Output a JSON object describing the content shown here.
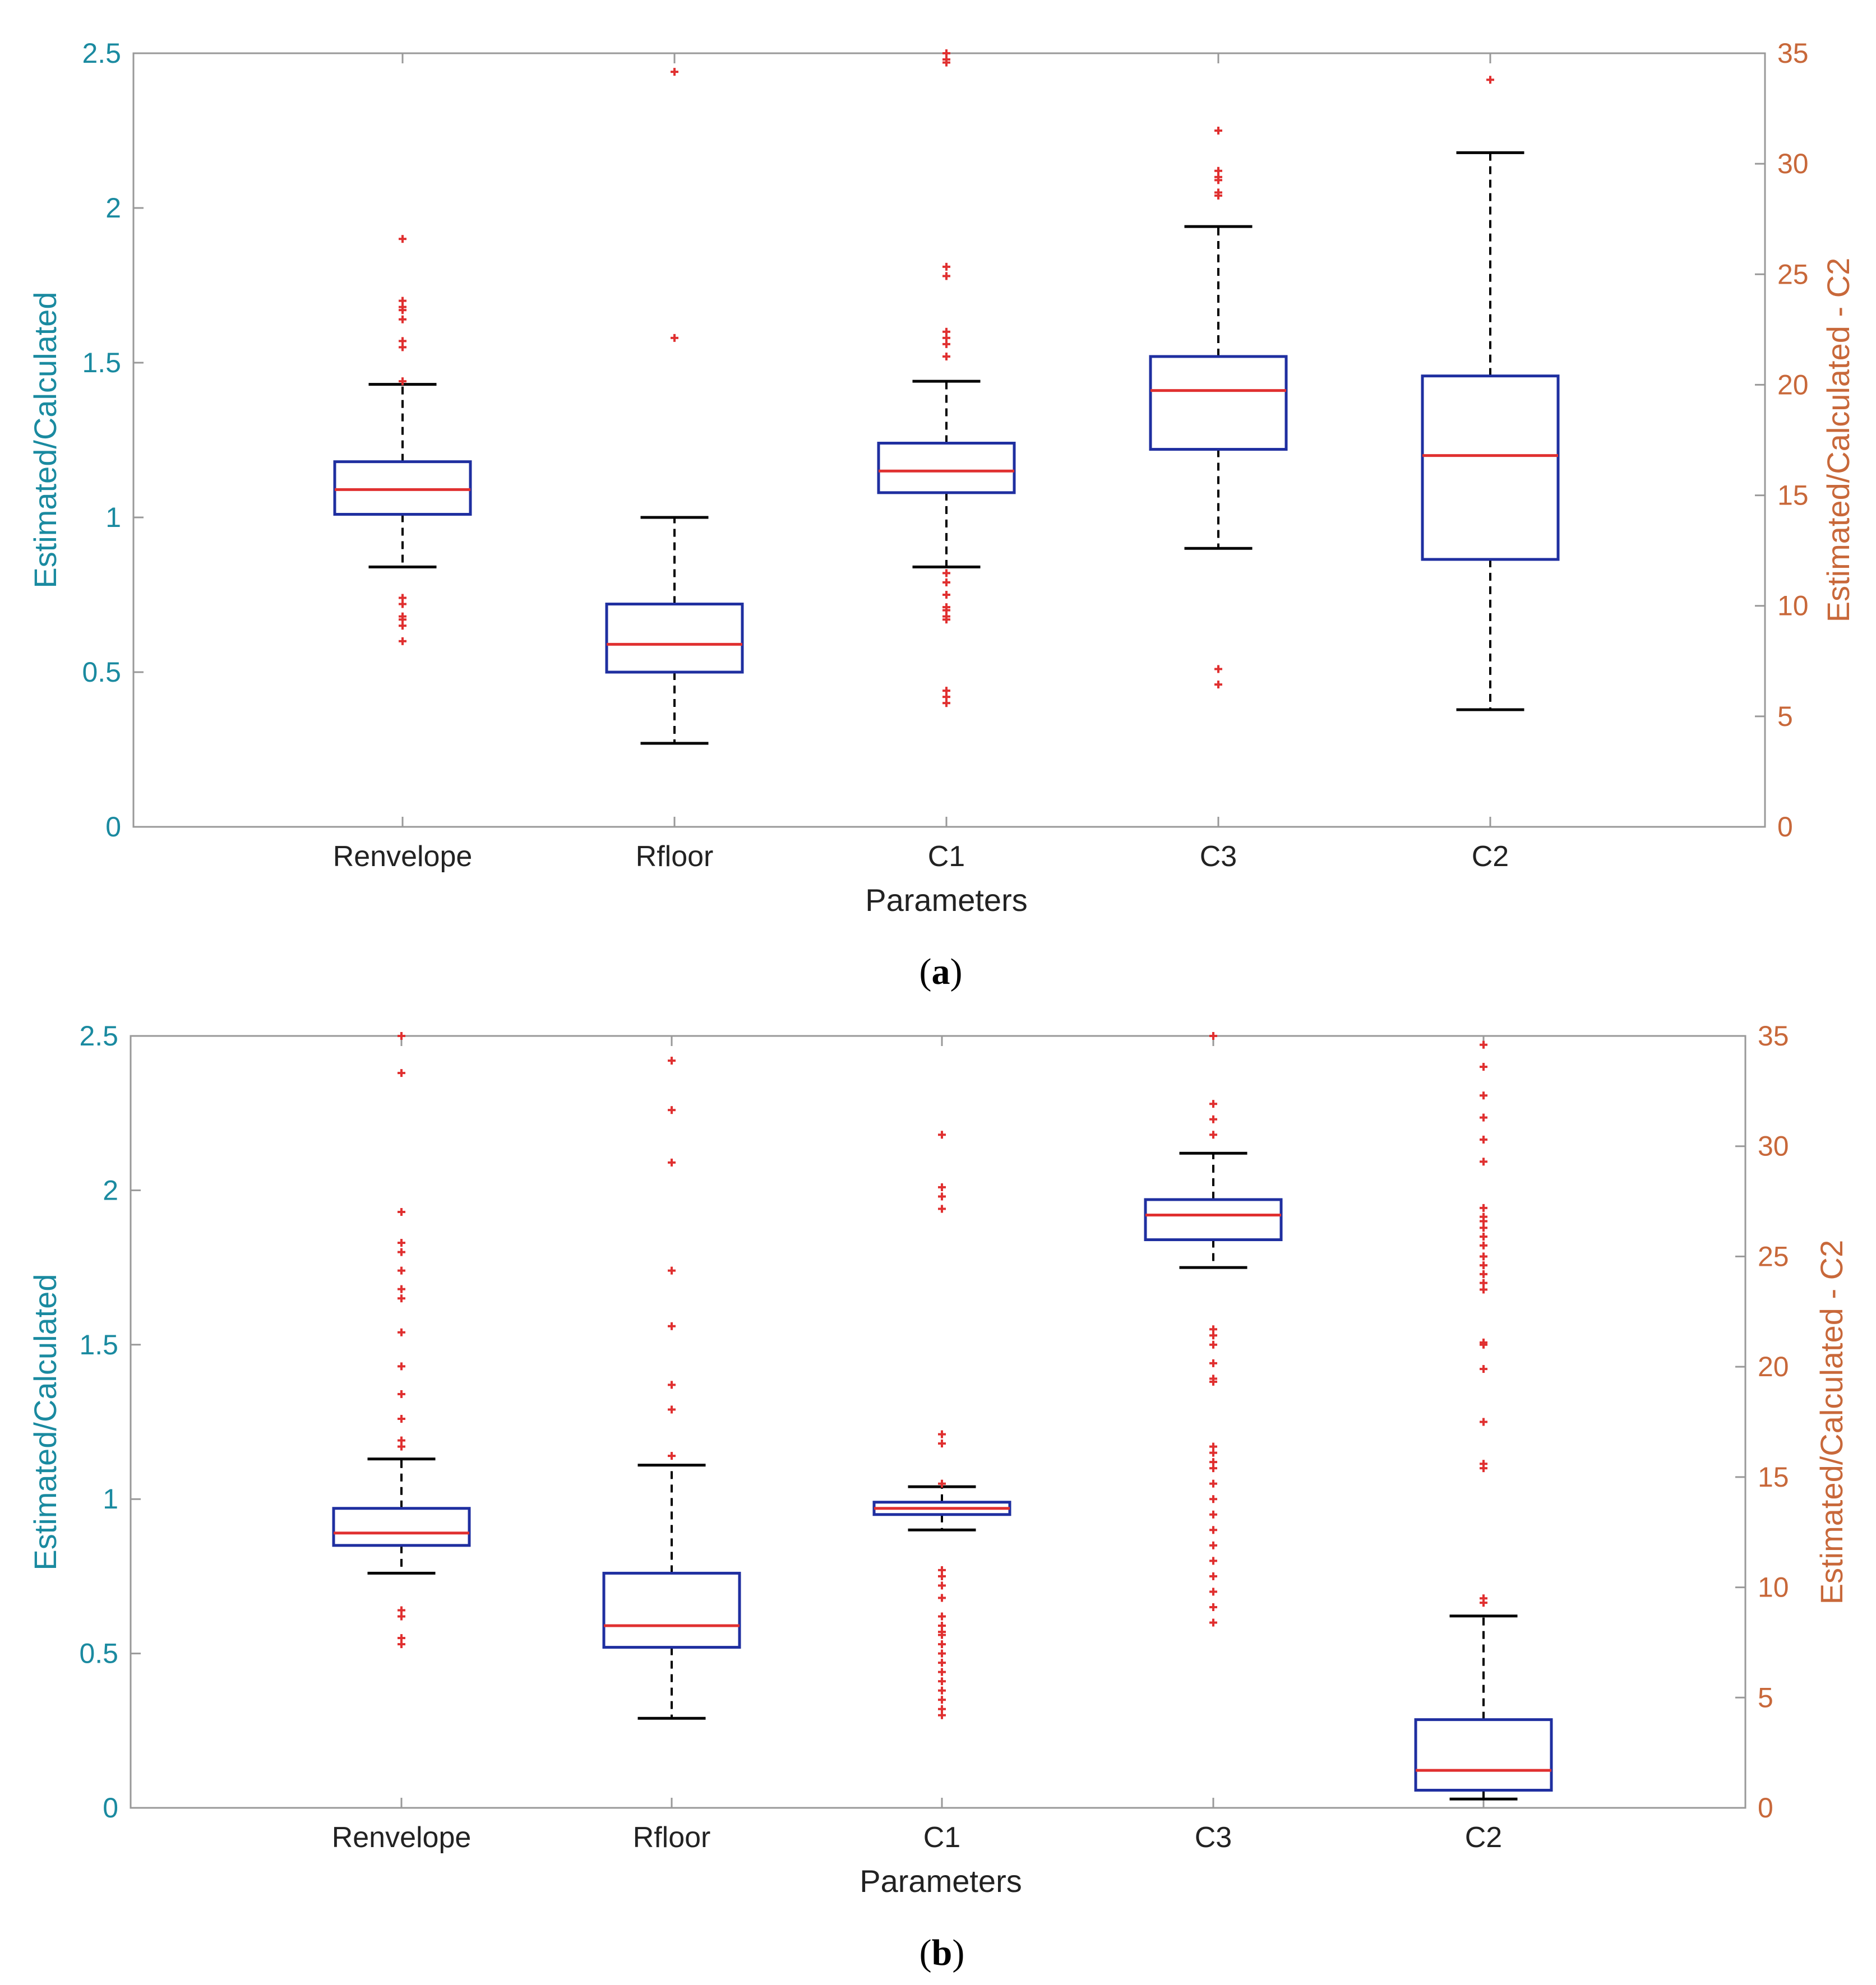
{
  "colors": {
    "left_axis": "#1a8aa0",
    "right_axis": "#c8683a",
    "box": "#1f2fa0",
    "median": "#e03030",
    "outlier": "#e03030",
    "whisker": "#000000",
    "frame": "#999999"
  },
  "chart_data": [
    {
      "type": "box",
      "panel_label": "(a)",
      "panel_letter": "a",
      "xlabel": "Parameters",
      "ylabel_left": "Estimated/Calculated",
      "ylabel_right": "Estimated/Calculated - C2",
      "ylim_left": [
        0,
        2.5
      ],
      "ylim_right": [
        0,
        35
      ],
      "yticks_left": [
        "0",
        "0.5",
        "1",
        "1.5",
        "2",
        "2.5"
      ],
      "yticks_right": [
        "0",
        "5",
        "10",
        "15",
        "20",
        "25",
        "30",
        "35"
      ],
      "categories": [
        "Renvelope",
        "Rfloor",
        "C1",
        "C3",
        "C2"
      ],
      "boxes": [
        {
          "name": "Renvelope",
          "axis": "left",
          "whisker_low": 0.84,
          "q1": 1.01,
          "median": 1.09,
          "q3": 1.18,
          "whisker_high": 1.43,
          "outliers": [
            0.6,
            0.65,
            0.67,
            0.68,
            0.72,
            0.74,
            1.44,
            1.55,
            1.57,
            1.64,
            1.67,
            1.68,
            1.7,
            1.9
          ]
        },
        {
          "name": "Rfloor",
          "axis": "left",
          "whisker_low": 0.27,
          "q1": 0.5,
          "median": 0.59,
          "q3": 0.72,
          "whisker_high": 1.0,
          "outliers": [
            1.58,
            2.44
          ]
        },
        {
          "name": "C1",
          "axis": "left",
          "whisker_low": 0.84,
          "q1": 1.08,
          "median": 1.15,
          "q3": 1.24,
          "whisker_high": 1.44,
          "outliers": [
            0.4,
            0.42,
            0.44,
            0.67,
            0.68,
            0.7,
            0.71,
            0.75,
            0.79,
            0.82,
            1.52,
            1.56,
            1.58,
            1.6,
            1.78,
            1.81,
            2.47,
            2.48,
            2.5
          ]
        },
        {
          "name": "C3",
          "axis": "left",
          "whisker_low": 0.9,
          "q1": 1.22,
          "median": 1.41,
          "q3": 1.52,
          "whisker_high": 1.94,
          "outliers": [
            0.46,
            0.51,
            2.04,
            2.05,
            2.09,
            2.1,
            2.12,
            2.25
          ]
        },
        {
          "name": "C2",
          "axis": "right",
          "whisker_low": 5.3,
          "q1": 12.1,
          "median": 16.8,
          "q3": 20.4,
          "whisker_high": 30.5,
          "outliers": [
            33.8
          ]
        }
      ]
    },
    {
      "type": "box",
      "panel_label": "(b)",
      "panel_letter": "b",
      "xlabel": "Parameters",
      "ylabel_left": "Estimated/Calculated",
      "ylabel_right": "Estimated/Calculated - C2",
      "ylim_left": [
        0,
        2.5
      ],
      "ylim_right": [
        0,
        35
      ],
      "yticks_left": [
        "0",
        "0.5",
        "1",
        "1.5",
        "2",
        "2.5"
      ],
      "yticks_right": [
        "0",
        "5",
        "10",
        "15",
        "20",
        "25",
        "30",
        "35"
      ],
      "categories": [
        "Renvelope",
        "Rfloor",
        "C1",
        "C3",
        "C2"
      ],
      "boxes": [
        {
          "name": "Renvelope",
          "axis": "left",
          "whisker_low": 0.76,
          "q1": 0.85,
          "median": 0.89,
          "q3": 0.97,
          "whisker_high": 1.13,
          "outliers": [
            0.53,
            0.55,
            0.62,
            0.64,
            1.17,
            1.19,
            1.26,
            1.34,
            1.43,
            1.54,
            1.65,
            1.68,
            1.74,
            1.8,
            1.83,
            1.93,
            2.38,
            2.5
          ]
        },
        {
          "name": "Rfloor",
          "axis": "left",
          "whisker_low": 0.29,
          "q1": 0.52,
          "median": 0.59,
          "q3": 0.76,
          "whisker_high": 1.11,
          "outliers": [
            1.14,
            1.29,
            1.37,
            1.56,
            1.74,
            2.09,
            2.26,
            2.42
          ]
        },
        {
          "name": "C1",
          "axis": "left",
          "whisker_low": 0.9,
          "q1": 0.95,
          "median": 0.97,
          "q3": 0.99,
          "whisker_high": 1.04,
          "outliers": [
            0.3,
            0.32,
            0.35,
            0.38,
            0.41,
            0.44,
            0.47,
            0.5,
            0.53,
            0.56,
            0.57,
            0.59,
            0.62,
            0.68,
            0.72,
            0.75,
            0.77,
            1.05,
            1.18,
            1.21,
            1.94,
            1.98,
            2.01,
            2.18
          ]
        },
        {
          "name": "C3",
          "axis": "left",
          "whisker_low": 1.75,
          "q1": 1.84,
          "median": 1.92,
          "q3": 1.97,
          "whisker_high": 2.12,
          "outliers": [
            0.6,
            0.65,
            0.7,
            0.75,
            0.8,
            0.85,
            0.9,
            0.95,
            1.0,
            1.05,
            1.1,
            1.12,
            1.15,
            1.17,
            1.38,
            1.39,
            1.44,
            1.5,
            1.53,
            1.55,
            2.18,
            2.23,
            2.28,
            2.5
          ]
        },
        {
          "name": "C2",
          "axis": "right",
          "whisker_low": 0.4,
          "q1": 0.8,
          "median": 1.7,
          "q3": 4.0,
          "whisker_high": 8.7,
          "outliers": [
            9.3,
            9.5,
            15.4,
            15.6,
            17.5,
            19.9,
            21.0,
            21.1,
            23.5,
            23.8,
            24.2,
            24.6,
            25.0,
            25.5,
            25.9,
            26.3,
            26.6,
            26.8,
            27.2,
            29.3,
            30.3,
            31.3,
            32.3,
            33.6,
            34.6
          ]
        }
      ]
    }
  ]
}
